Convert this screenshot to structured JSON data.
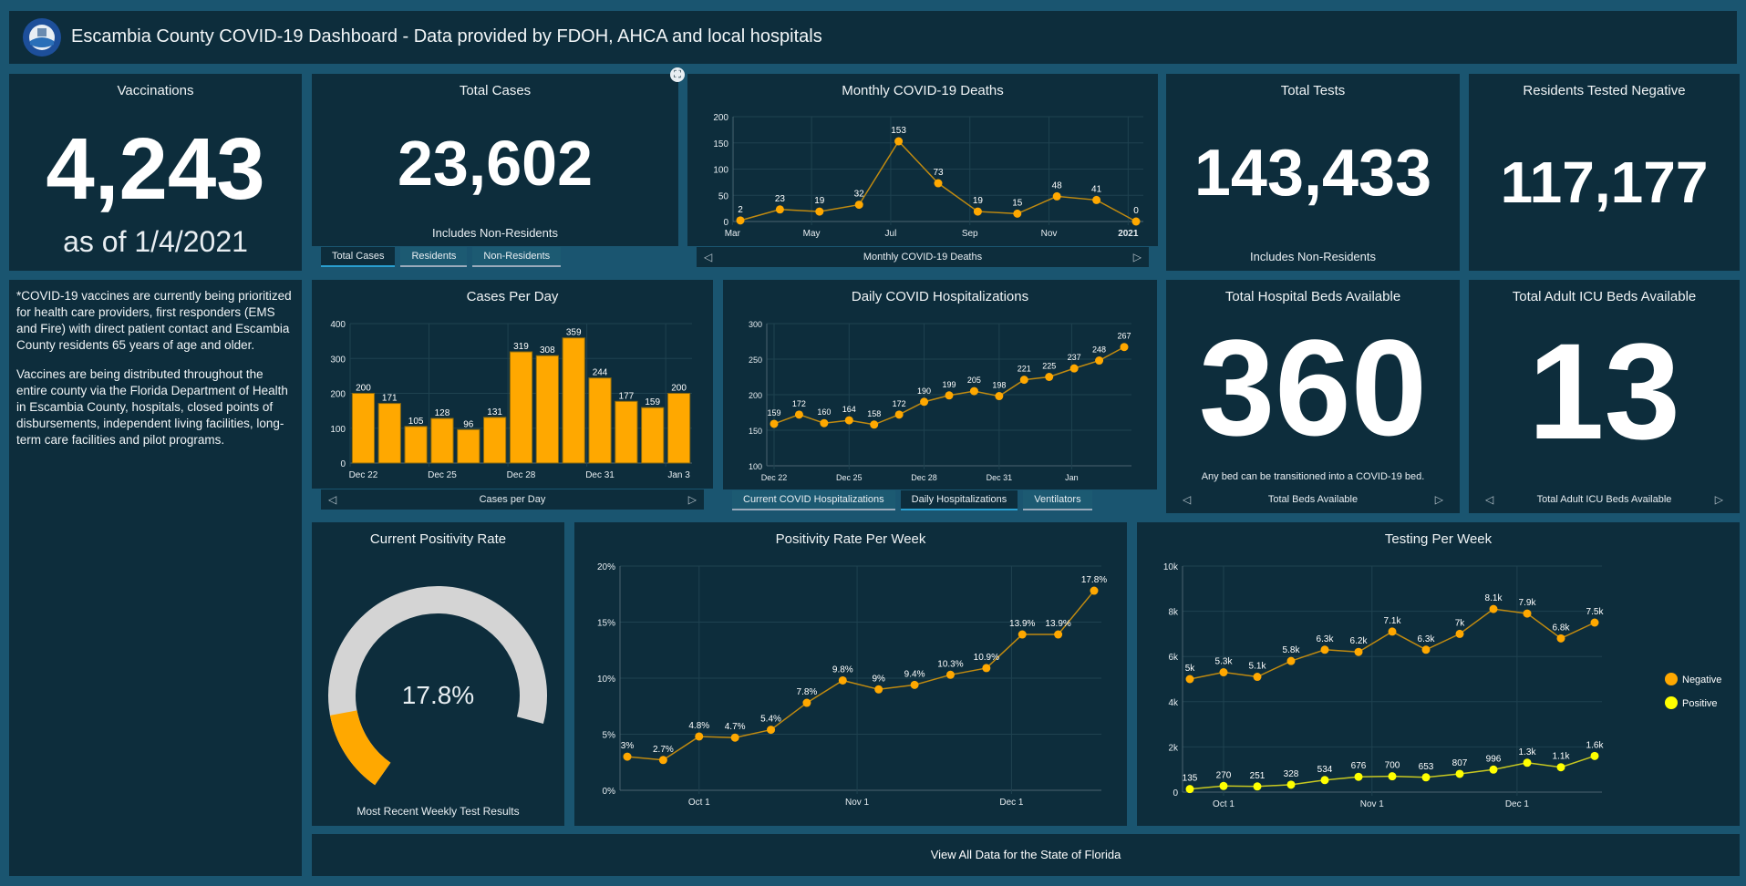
{
  "header": {
    "title": "Escambia County COVID-19 Dashboard - Data provided by FDOH, AHCA and local hospitals",
    "logo_text": "ESCAMBIA COUNTY FLORIDA"
  },
  "vaccinations": {
    "title": "Vaccinations",
    "value": "4,243",
    "date": "as of 1/4/2021"
  },
  "total_cases": {
    "title": "Total Cases",
    "value": "23,602",
    "note": "Includes Non-Residents",
    "tabs": [
      "Total Cases",
      "Residents",
      "Non-Residents"
    ]
  },
  "total_tests": {
    "title": "Total Tests",
    "value": "143,433",
    "note": "Includes Non-Residents"
  },
  "tested_negative": {
    "title": "Residents Tested Negative",
    "value": "117,177"
  },
  "vaccine_info": {
    "p1": "*COVID-19 vaccines are currently being prioritized for health care providers, first responders (EMS and Fire) with direct patient contact and Escambia County residents 65 years of age and older.",
    "p2": "Vaccines are being distributed throughout the entire county via the Florida Department of Health in Escambia County, hospitals, closed points of disbursements, independent living facilities, long-term care facilities and pilot programs."
  },
  "hospital_beds": {
    "title": "Total Hospital Beds Available",
    "value": "360",
    "note": "Any bed can be transitioned into a COVID-19 bed.",
    "footer": "Total Beds Available"
  },
  "icu_beds": {
    "title": "Total Adult ICU Beds Available",
    "value": "13",
    "footer": "Total Adult ICU Beds Available"
  },
  "hosp_tabs": [
    "Current COVID Hospitalizations",
    "Daily Hospitalizations",
    "Ventilators"
  ],
  "positivity": {
    "title": "Current Positivity Rate",
    "value": "17.8%",
    "fraction": 0.178,
    "note": "Most Recent Weekly Test Results"
  },
  "state_link": "View All Data for the State of Florida",
  "colors": {
    "accent": "#ffa800",
    "positive": "#ffff00",
    "panel": "#0d2d3c",
    "background": "#1a5570"
  },
  "chart_data": [
    {
      "id": "deaths",
      "type": "line",
      "title": "Monthly COVID-19 Deaths",
      "footer": "Monthly COVID-19 Deaths",
      "values": [
        2,
        23,
        19,
        32,
        153,
        73,
        19,
        15,
        48,
        41,
        0
      ],
      "labels": [
        "2",
        "23",
        "19",
        "32",
        "153",
        "73",
        "19",
        "15",
        "48",
        "41",
        "0"
      ],
      "ylim": [
        0,
        200
      ],
      "yticks": [
        0,
        50,
        100,
        150,
        200
      ],
      "ytick_labels": [
        "0",
        "50",
        "100",
        "150",
        "200"
      ],
      "xticks": [
        {
          "at": -0.2,
          "label": "Mar"
        },
        {
          "at": 1.8,
          "label": "May"
        },
        {
          "at": 3.8,
          "label": "Jul"
        },
        {
          "at": 5.8,
          "label": "Sep"
        },
        {
          "at": 7.8,
          "label": "Nov"
        },
        {
          "at": 9.8,
          "label": "2021"
        }
      ]
    },
    {
      "id": "cases",
      "type": "bar",
      "title": "Cases Per Day",
      "footer": "Cases per Day",
      "values": [
        200,
        171,
        105,
        128,
        96,
        131,
        319,
        308,
        359,
        244,
        177,
        159,
        200
      ],
      "labels": [
        "200",
        "171",
        "105",
        "128",
        "96",
        "131",
        "319",
        "308",
        "359",
        "244",
        "177",
        "159",
        "200"
      ],
      "ylim": [
        0,
        400
      ],
      "yticks": [
        0,
        100,
        200,
        300,
        400
      ],
      "ytick_labels": [
        "0",
        "100",
        "200",
        "300",
        "400"
      ],
      "xticks": [
        {
          "at": 0,
          "label": "Dec 22"
        },
        {
          "at": 3,
          "label": "Dec 25"
        },
        {
          "at": 6,
          "label": "Dec 28"
        },
        {
          "at": 9,
          "label": "Dec 31"
        },
        {
          "at": 12,
          "label": "Jan 3"
        }
      ]
    },
    {
      "id": "hosp",
      "type": "line",
      "title": "Daily COVID Hospitalizations",
      "values": [
        159,
        172,
        160,
        164,
        158,
        172,
        190,
        199,
        205,
        198,
        221,
        225,
        237,
        248,
        267
      ],
      "labels": [
        "159",
        "172",
        "160",
        "164",
        "158",
        "172",
        "190",
        "199",
        "205",
        "198",
        "221",
        "225",
        "237",
        "248",
        "267"
      ],
      "ylim": [
        100,
        300
      ],
      "yticks": [
        100,
        150,
        200,
        250,
        300
      ],
      "ytick_labels": [
        "100",
        "150",
        "200",
        "250",
        "300"
      ],
      "xticks": [
        {
          "at": 0,
          "label": "Dec 22"
        },
        {
          "at": 3,
          "label": "Dec 25"
        },
        {
          "at": 6,
          "label": "Dec 28"
        },
        {
          "at": 9,
          "label": "Dec 31"
        },
        {
          "at": 11.9,
          "label": "Jan"
        }
      ]
    },
    {
      "id": "posrate",
      "type": "line",
      "title": "Positivity Rate Per Week",
      "values": [
        3,
        2.7,
        4.8,
        4.7,
        5.4,
        7.8,
        9.8,
        9,
        9.4,
        10.3,
        10.9,
        13.9,
        13.9,
        17.8
      ],
      "labels": [
        "3%",
        "2.7%",
        "4.8%",
        "4.7%",
        "5.4%",
        "7.8%",
        "9.8%",
        "9%",
        "9.4%",
        "10.3%",
        "10.9%",
        "13.9%",
        "13.9%",
        "17.8%"
      ],
      "ylim": [
        0,
        20
      ],
      "yticks": [
        0,
        5,
        10,
        15,
        20
      ],
      "ytick_labels": [
        "0%",
        "5%",
        "10%",
        "15%",
        "20%"
      ],
      "xticks": [
        {
          "at": 2,
          "label": "Oct 1"
        },
        {
          "at": 6.4,
          "label": "Nov 1"
        },
        {
          "at": 10.7,
          "label": "Dec 1"
        }
      ]
    },
    {
      "id": "testing",
      "type": "line",
      "title": "Testing Per Week",
      "series": [
        {
          "name": "Negative",
          "color": "#ffa800",
          "values": [
            5000,
            5300,
            5100,
            5800,
            6300,
            6200,
            7100,
            6300,
            7000,
            8100,
            7900,
            6800,
            7500
          ],
          "labels": [
            "5k",
            "5.3k",
            "5.1k",
            "5.8k",
            "6.3k",
            "6.2k",
            "7.1k",
            "6.3k",
            "7k",
            "8.1k",
            "7.9k",
            "6.8k",
            "7.5k"
          ]
        },
        {
          "name": "Positive",
          "color": "#ffff00",
          "values": [
            135,
            270,
            251,
            328,
            534,
            676,
            700,
            653,
            807,
            996,
            1300,
            1100,
            1600
          ],
          "labels": [
            "135",
            "270",
            "251",
            "328",
            "534",
            "676",
            "700",
            "653",
            "807",
            "996",
            "1.3k",
            "1.1k",
            "1.6k"
          ]
        }
      ],
      "ylim": [
        0,
        10000
      ],
      "yticks": [
        0,
        2000,
        4000,
        6000,
        8000,
        10000
      ],
      "ytick_labels": [
        "0",
        "2k",
        "4k",
        "6k",
        "8k",
        "10k"
      ],
      "xticks": [
        {
          "at": 1,
          "label": "Oct 1"
        },
        {
          "at": 5.4,
          "label": "Nov 1"
        },
        {
          "at": 9.7,
          "label": "Dec 1"
        }
      ],
      "legend": "right"
    }
  ]
}
